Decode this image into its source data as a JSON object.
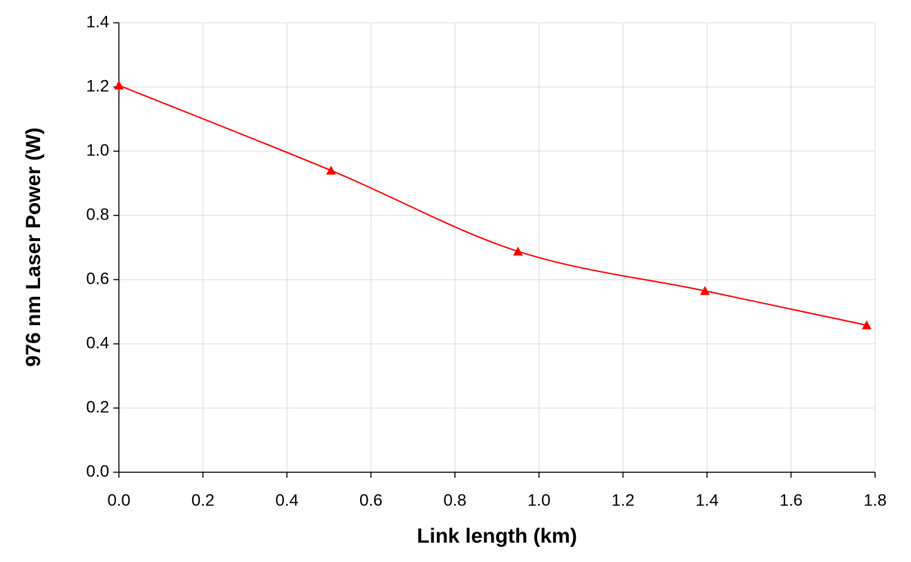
{
  "chart_data": {
    "type": "line",
    "x_label": "Link length (km)",
    "y_label": "976 nm Laser Power (W)",
    "x": [
      0,
      0.505,
      0.95,
      1.395,
      1.78
    ],
    "series": [
      {
        "color": "#ff0000",
        "values": [
          1.205,
          0.94,
          0.688,
          0.565,
          0.458
        ]
      }
    ],
    "xlim": [
      0,
      1.8
    ],
    "xticks": [
      {
        "value": 0,
        "label": "0.0"
      },
      0.2,
      0.4,
      0.6,
      0.8,
      {
        "value": 1,
        "label": "1.0"
      },
      1.2,
      1.4,
      1.6,
      1.8
    ],
    "ylim": [
      0,
      1.4
    ],
    "yticks": [
      {
        "value": 0,
        "label": "0.0"
      },
      0.2,
      0.4,
      0.6,
      0.8,
      {
        "value": 1,
        "label": "1.0"
      },
      1.2,
      1.4
    ],
    "grid": true
  }
}
